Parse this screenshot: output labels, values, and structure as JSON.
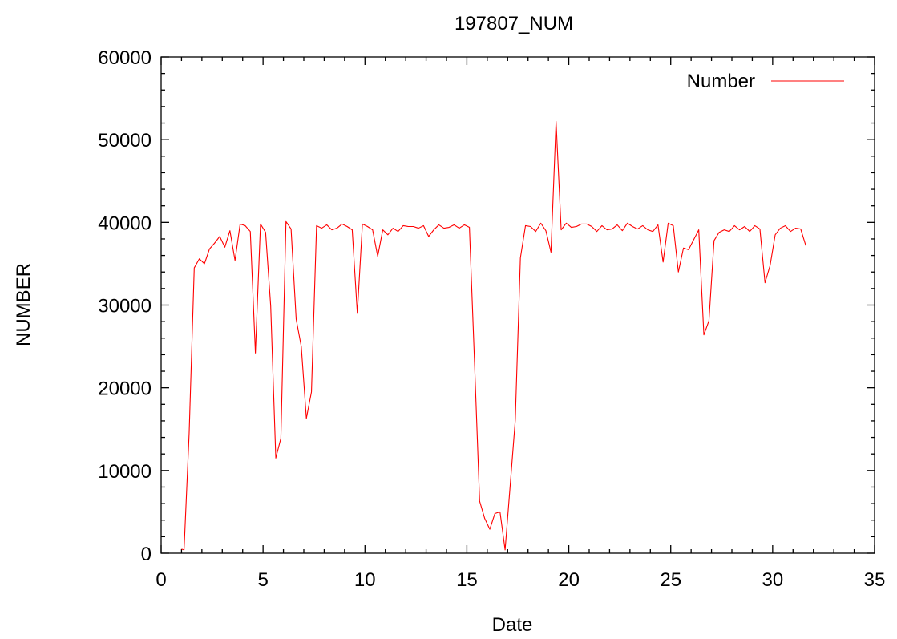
{
  "chart_data": {
    "type": "line",
    "title": "197807_NUM",
    "xlabel": "Date",
    "ylabel": "NUMBER",
    "xlim": [
      0,
      35
    ],
    "ylim": [
      0,
      60000
    ],
    "xticks": [
      0,
      5,
      10,
      15,
      20,
      25,
      30,
      35
    ],
    "yticks": [
      0,
      10000,
      20000,
      30000,
      40000,
      50000,
      60000
    ],
    "xtick_labels": [
      "0",
      "5",
      "10",
      "15",
      "20",
      "25",
      "30",
      "35"
    ],
    "ytick_labels": [
      "0",
      "10000",
      "20000",
      "30000",
      "40000",
      "50000",
      "60000"
    ],
    "grid": false,
    "legend_position": "top-right",
    "series": [
      {
        "name": "Number",
        "color": "#ff0000",
        "x": [
          1.0,
          1.125,
          1.375,
          1.625,
          1.875,
          2.125,
          2.375,
          2.625,
          2.875,
          3.125,
          3.375,
          3.625,
          3.875,
          4.125,
          4.375,
          4.625,
          4.875,
          5.125,
          5.375,
          5.625,
          5.875,
          6.125,
          6.375,
          6.625,
          6.875,
          7.125,
          7.375,
          7.625,
          7.875,
          8.125,
          8.375,
          8.625,
          8.875,
          9.125,
          9.375,
          9.625,
          9.875,
          10.125,
          10.375,
          10.625,
          10.875,
          11.125,
          11.375,
          11.625,
          11.875,
          12.125,
          12.375,
          12.625,
          12.875,
          13.125,
          13.375,
          13.625,
          13.875,
          14.125,
          14.375,
          14.625,
          14.875,
          15.125,
          15.375,
          15.625,
          15.875,
          16.125,
          16.375,
          16.625,
          16.875,
          17.125,
          17.375,
          17.625,
          17.875,
          18.125,
          18.375,
          18.625,
          18.875,
          19.125,
          19.375,
          19.625,
          19.875,
          20.125,
          20.375,
          20.625,
          20.875,
          21.125,
          21.375,
          21.625,
          21.875,
          22.125,
          22.375,
          22.625,
          22.875,
          23.125,
          23.375,
          23.625,
          23.875,
          24.125,
          24.375,
          24.625,
          24.875,
          25.125,
          25.375,
          25.625,
          25.875,
          26.125,
          26.375,
          26.625,
          26.875,
          27.125,
          27.375,
          27.625,
          27.875,
          28.125,
          28.375,
          28.625,
          28.875,
          29.125,
          29.375,
          29.625,
          29.875,
          30.125,
          30.375,
          30.625,
          30.875,
          31.125,
          31.375,
          31.625
        ],
        "values": [
          500,
          400,
          14500,
          34500,
          35600,
          35000,
          36800,
          37500,
          38300,
          37000,
          39000,
          35400,
          39800,
          39600,
          38900,
          24200,
          39800,
          38800,
          29900,
          11500,
          13900,
          40100,
          39200,
          28300,
          25000,
          16300,
          19500,
          39600,
          39300,
          39700,
          39100,
          39300,
          39800,
          39500,
          39100,
          29000,
          39800,
          39500,
          39100,
          35900,
          39100,
          38500,
          39300,
          38900,
          39600,
          39500,
          39500,
          39300,
          39600,
          38300,
          39100,
          39700,
          39300,
          39400,
          39700,
          39300,
          39700,
          39400,
          23100,
          6300,
          4200,
          2900,
          4800,
          5000,
          400,
          8200,
          16100,
          35700,
          39600,
          39500,
          38900,
          39900,
          39000,
          36400,
          52200,
          39100,
          39900,
          39400,
          39500,
          39800,
          39800,
          39500,
          38900,
          39600,
          39100,
          39200,
          39700,
          39000,
          39900,
          39500,
          39200,
          39600,
          39100,
          38900,
          39700,
          35200,
          39900,
          39600,
          34000,
          36900,
          36700,
          37900,
          39100,
          26400,
          28100,
          37800,
          38800,
          39100,
          38900,
          39600,
          39100,
          39500,
          38900,
          39600,
          39200,
          32700,
          34800,
          38500,
          39300,
          39600,
          38900,
          39300,
          39200,
          37200
        ]
      }
    ]
  }
}
